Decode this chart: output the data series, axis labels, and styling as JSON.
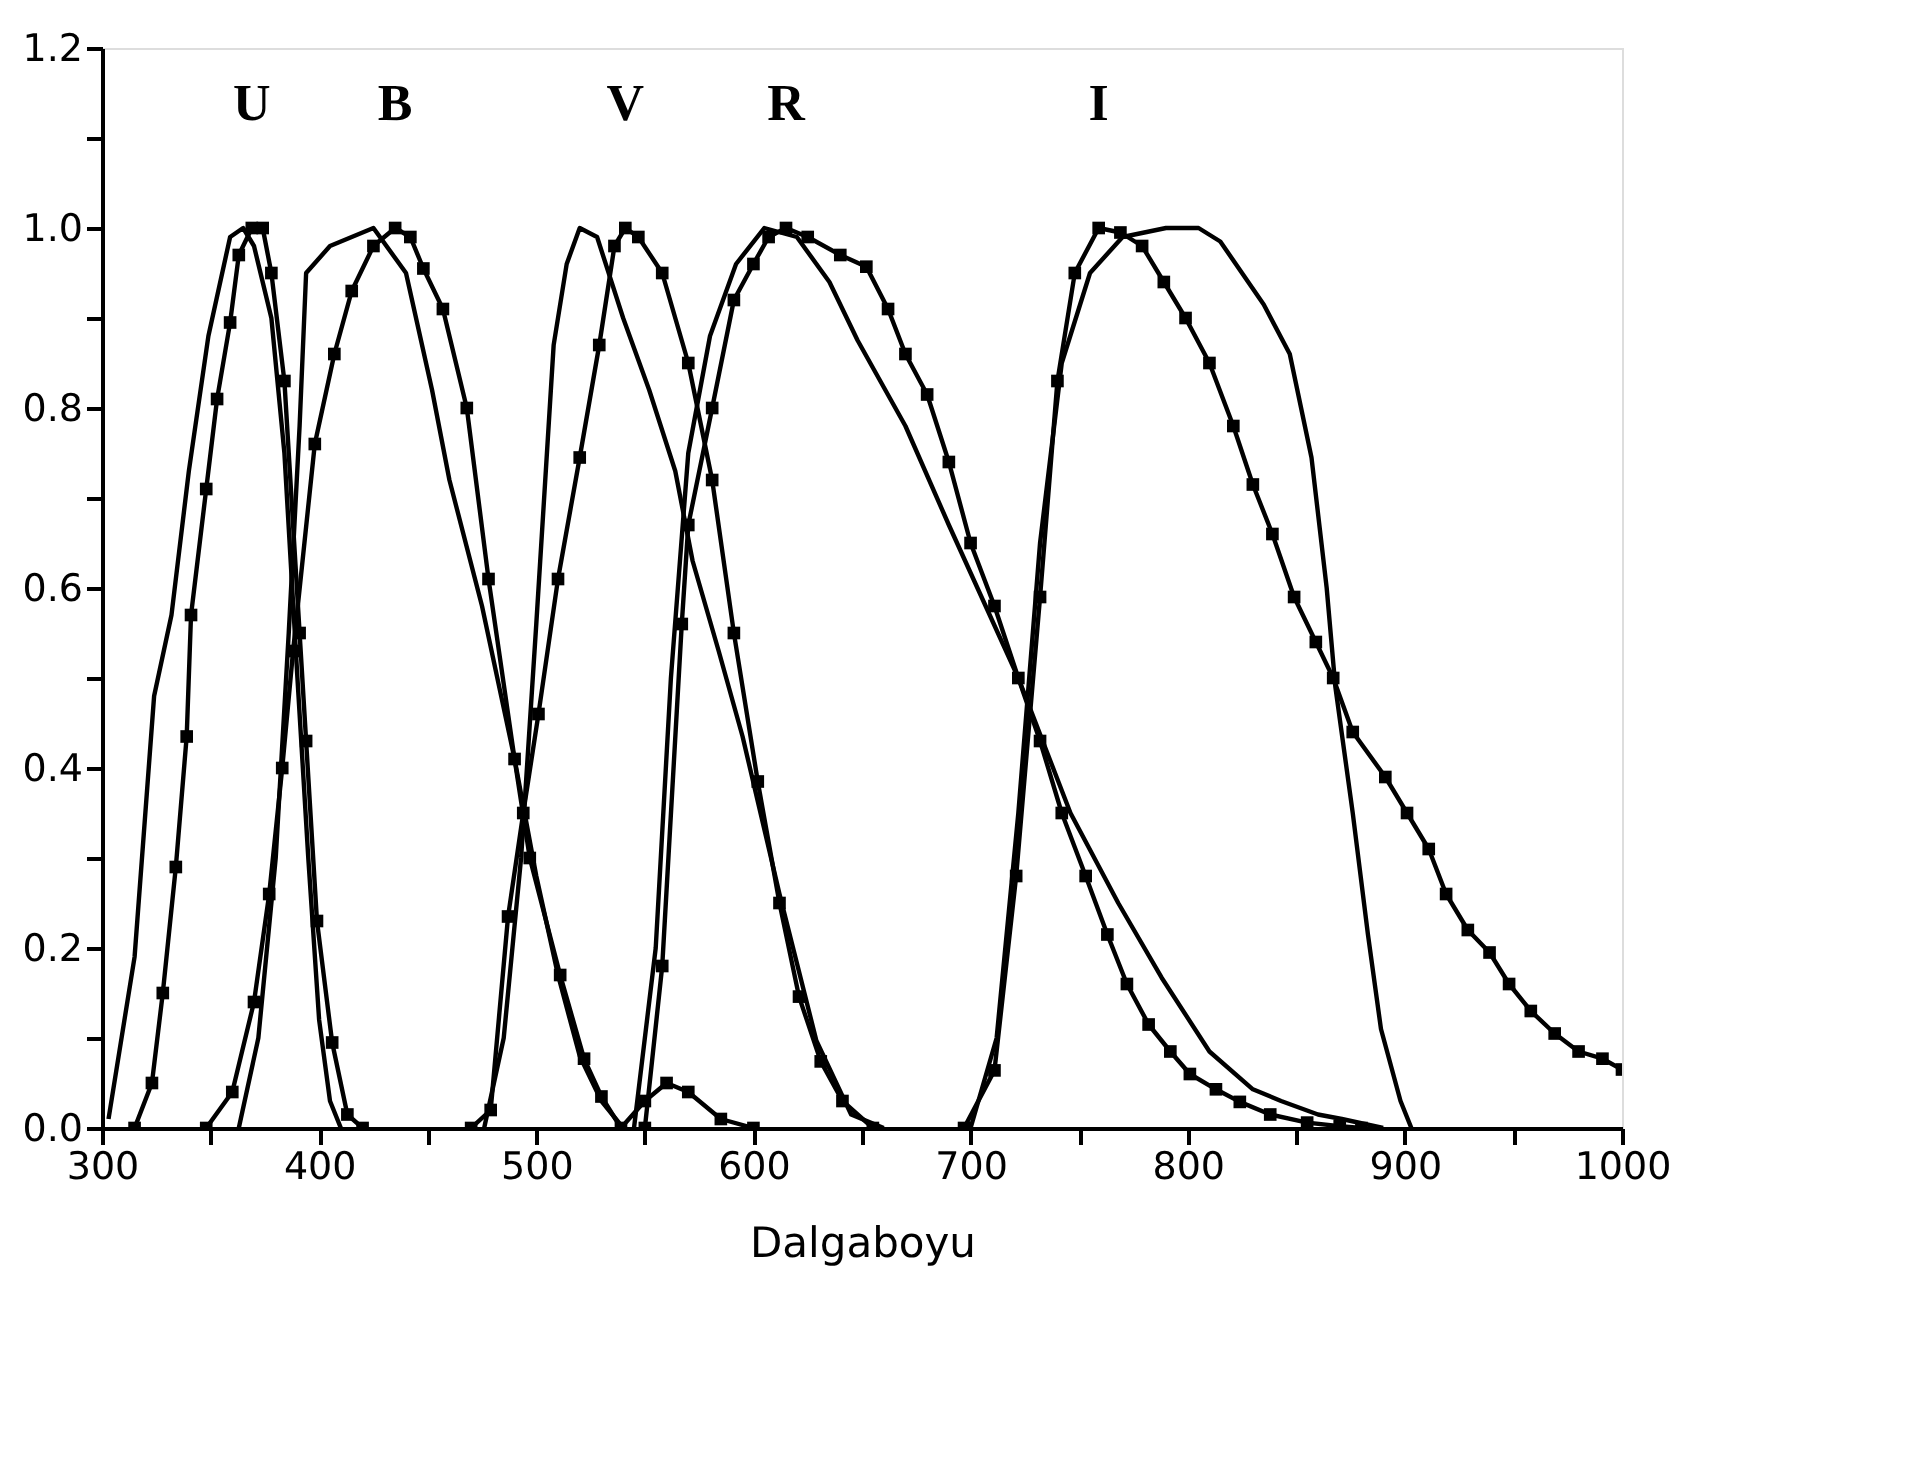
{
  "chart_data": {
    "type": "line",
    "xlabel": "Dalgaboyu",
    "xlim": [
      300,
      1000
    ],
    "ylim": [
      0,
      1.2
    ],
    "xticks": [
      300,
      {
        "value": 350,
        "label": null
      },
      400,
      {
        "value": 450,
        "label": null
      },
      500,
      {
        "value": 550,
        "label": null
      },
      600,
      {
        "value": 650,
        "label": null
      },
      700,
      {
        "value": 750,
        "label": null
      },
      800,
      {
        "value": 850,
        "label": null
      },
      900,
      {
        "value": 950,
        "label": null
      },
      1000
    ],
    "yticks": [
      {
        "value": 0,
        "label": "0.0"
      },
      {
        "value": 0.1,
        "label": null
      },
      {
        "value": 0.2,
        "label": "0.2"
      },
      {
        "value": 0.3,
        "label": null
      },
      {
        "value": 0.4,
        "label": "0.4"
      },
      {
        "value": 0.5,
        "label": null
      },
      {
        "value": 0.6,
        "label": "0.6"
      },
      {
        "value": 0.7,
        "label": null
      },
      {
        "value": 0.8,
        "label": "0.8"
      },
      {
        "value": 0.9,
        "label": null
      },
      {
        "value": 1,
        "label": "1.0"
      },
      {
        "value": 1.1,
        "label": null
      },
      {
        "value": 1.2,
        "label": "1.2"
      }
    ],
    "grid": false,
    "line_style": "solid",
    "series": [
      {
        "name": "U",
        "color": "#000000",
        "marker": "square",
        "x": [
          315,
          323,
          328,
          334,
          339,
          341,
          348,
          353,
          359,
          363,
          369,
          374,
          378,
          384,
          391,
          394,
          399,
          406,
          413,
          420
        ],
        "values": [
          0,
          0.05,
          0.15,
          0.29,
          0.435,
          0.57,
          0.71,
          0.81,
          0.895,
          0.97,
          1.0,
          1.0,
          0.95,
          0.83,
          0.55,
          0.43,
          0.23,
          0.095,
          0.015,
          0
        ]
      },
      {
        "color": "#000000",
        "marker": "none",
        "x": [
          303,
          315,
          324,
          332,
          340,
          349,
          359,
          365,
          370,
          378,
          384,
          390,
          395,
          400,
          405,
          410
        ],
        "values": [
          0.01,
          0.19,
          0.48,
          0.57,
          0.73,
          0.88,
          0.99,
          1.0,
          0.98,
          0.9,
          0.75,
          0.5,
          0.3,
          0.12,
          0.03,
          0
        ]
      },
      {
        "name": "B",
        "color": "#000000",
        "marker": "square",
        "x": [
          348,
          360,
          370,
          377,
          383,
          388,
          398,
          407,
          415,
          425,
          435,
          442,
          448,
          457,
          468,
          478,
          490,
          497,
          511,
          522,
          530,
          539,
          550,
          560,
          570,
          585,
          600
        ],
        "values": [
          0,
          0.04,
          0.14,
          0.26,
          0.4,
          0.53,
          0.76,
          0.86,
          0.93,
          0.98,
          1.0,
          0.99,
          0.955,
          0.91,
          0.8,
          0.61,
          0.41,
          0.3,
          0.17,
          0.077,
          0.035,
          0,
          0.03,
          0.05,
          0.04,
          0.01,
          0
        ]
      },
      {
        "color": "#000000",
        "marker": "none",
        "x": [
          363,
          372,
          380,
          386,
          391,
          394,
          405,
          425,
          440,
          452,
          460,
          475,
          490,
          500,
          510,
          520,
          530,
          540
        ],
        "values": [
          0,
          0.1,
          0.3,
          0.55,
          0.78,
          0.95,
          0.98,
          1.0,
          0.95,
          0.82,
          0.72,
          0.58,
          0.41,
          0.28,
          0.17,
          0.08,
          0.03,
          0
        ]
      },
      {
        "name": "V",
        "color": "#000000",
        "marker": "square",
        "x": [
          470,
          479,
          487,
          494,
          501,
          510,
          520,
          529,
          536,
          541,
          547,
          558,
          570,
          581,
          591,
          602,
          612,
          621,
          631,
          641,
          655
        ],
        "values": [
          0,
          0.02,
          0.235,
          0.35,
          0.46,
          0.61,
          0.745,
          0.87,
          0.98,
          1.0,
          0.99,
          0.95,
          0.85,
          0.72,
          0.55,
          0.385,
          0.25,
          0.146,
          0.074,
          0.03,
          0
        ]
      },
      {
        "color": "#000000",
        "marker": "none",
        "x": [
          476,
          485,
          493,
          500,
          508,
          514,
          520,
          528,
          540,
          552,
          564,
          572,
          584,
          595,
          612,
          629,
          645,
          660
        ],
        "values": [
          0,
          0.1,
          0.3,
          0.56,
          0.87,
          0.96,
          1.0,
          0.99,
          0.9,
          0.82,
          0.73,
          0.63,
          0.53,
          0.435,
          0.26,
          0.097,
          0.015,
          0
        ]
      },
      {
        "name": "R",
        "color": "#000000",
        "marker": "square",
        "x": [
          550,
          558,
          567,
          570,
          581,
          591,
          600,
          607,
          615,
          625,
          640,
          652,
          662,
          670,
          680,
          690,
          700,
          711,
          722,
          732,
          742,
          753,
          763,
          772,
          782,
          792,
          801,
          813,
          824,
          838,
          855,
          870,
          880
        ],
        "values": [
          0,
          0.18,
          0.56,
          0.67,
          0.8,
          0.92,
          0.96,
          0.99,
          1.0,
          0.99,
          0.97,
          0.957,
          0.91,
          0.86,
          0.815,
          0.74,
          0.65,
          0.58,
          0.5,
          0.43,
          0.35,
          0.28,
          0.215,
          0.16,
          0.115,
          0.085,
          0.06,
          0.043,
          0.029,
          0.015,
          0.006,
          0.002,
          0
        ]
      },
      {
        "color": "#000000",
        "marker": "none",
        "x": [
          545,
          555,
          562,
          570,
          580,
          592,
          605,
          620,
          635,
          648,
          670,
          690,
          722,
          746,
          768,
          788,
          810,
          830,
          843,
          860,
          871,
          890
        ],
        "values": [
          0,
          0.2,
          0.5,
          0.75,
          0.88,
          0.96,
          1.0,
          0.99,
          0.94,
          0.875,
          0.78,
          0.67,
          0.5,
          0.35,
          0.25,
          0.167,
          0.085,
          0.043,
          0.03,
          0.015,
          0.01,
          0
        ]
      },
      {
        "name": "I",
        "color": "#000000",
        "marker": "square",
        "x": [
          697,
          711,
          721,
          732,
          740,
          748,
          759,
          769,
          779,
          789,
          799,
          810,
          821,
          830,
          839,
          849,
          859,
          867,
          876,
          891,
          901,
          911,
          919,
          929,
          939,
          948,
          958,
          969,
          980,
          991,
          1000
        ],
        "values": [
          0,
          0.064,
          0.28,
          0.59,
          0.83,
          0.95,
          1.0,
          0.995,
          0.98,
          0.94,
          0.9,
          0.85,
          0.78,
          0.715,
          0.66,
          0.59,
          0.54,
          0.5,
          0.44,
          0.39,
          0.35,
          0.31,
          0.26,
          0.22,
          0.195,
          0.16,
          0.13,
          0.105,
          0.085,
          0.077,
          0.065
        ]
      },
      {
        "color": "#000000",
        "marker": "none",
        "x": [
          700,
          712,
          722,
          732,
          742,
          755,
          770,
          790,
          805,
          815,
          835,
          847,
          857,
          864,
          868,
          876,
          883,
          889,
          898,
          903
        ],
        "values": [
          0,
          0.1,
          0.35,
          0.65,
          0.85,
          0.95,
          0.99,
          1.0,
          1.0,
          0.985,
          0.915,
          0.86,
          0.745,
          0.6,
          0.49,
          0.35,
          0.215,
          0.11,
          0.03,
          0
        ]
      }
    ]
  }
}
